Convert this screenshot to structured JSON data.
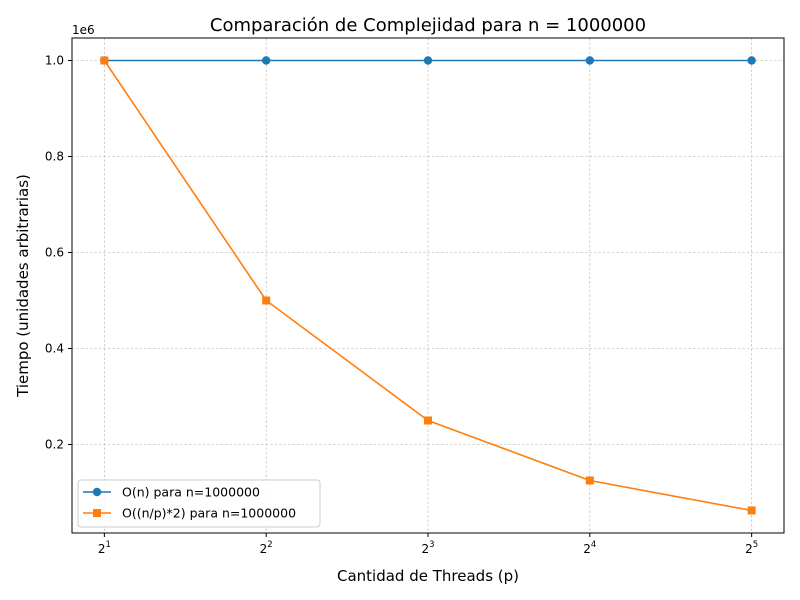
{
  "chart_data": {
    "type": "line",
    "title": "Comparación de Complejidad para n = 1000000",
    "xlabel": "Cantidad de Threads (p)",
    "ylabel": "Tiempo (unidades arbitrarias)",
    "x_scale": "log2",
    "x": [
      2,
      4,
      8,
      16,
      32
    ],
    "x_tick_labels": [
      {
        "base": "2",
        "exp": "1"
      },
      {
        "base": "2",
        "exp": "2"
      },
      {
        "base": "2",
        "exp": "3"
      },
      {
        "base": "2",
        "exp": "4"
      },
      {
        "base": "2",
        "exp": "5"
      }
    ],
    "y_ticks": [
      0.2,
      0.4,
      0.6,
      0.8,
      1.0
    ],
    "y_tick_labels": [
      "0.2",
      "0.4",
      "0.6",
      "0.8",
      "1.0"
    ],
    "y_multiplier_label": "1e6",
    "ylim": [
      15625,
      1046875
    ],
    "grid": true,
    "legend_position": "lower-left",
    "series": [
      {
        "name": "O(n) para n=1000000",
        "color": "#1f77b4",
        "marker": "circle",
        "values": [
          1000000,
          1000000,
          1000000,
          1000000,
          1000000
        ]
      },
      {
        "name": "O((n/p)*2) para n=1000000",
        "color": "#ff7f0e",
        "marker": "square",
        "values": [
          1000000,
          500000,
          250000,
          125000,
          62500
        ]
      }
    ]
  }
}
